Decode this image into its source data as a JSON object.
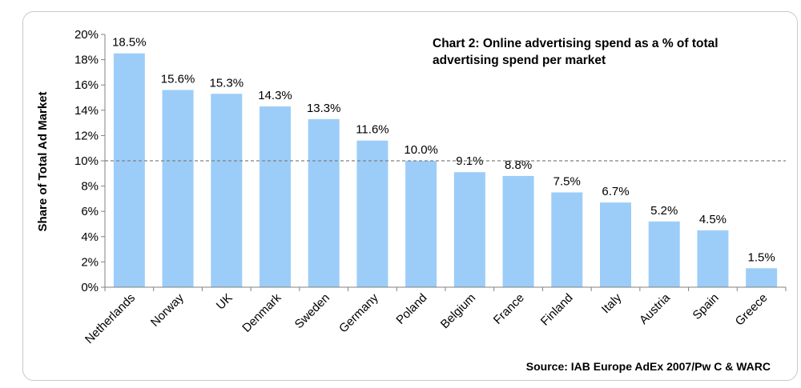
{
  "chart_data": {
    "type": "bar",
    "title_lines": [
      "Chart 2: Online advertising spend as a % of total",
      "advertising spend per market"
    ],
    "ylabel": "Share of Total Ad Market",
    "xlabel": "",
    "source": "Source: IAB Europe AdEx 2007/Pw C & WARC",
    "categories": [
      "Netherlands",
      "Norway",
      "UK",
      "Denmark",
      "Sweden",
      "Germany",
      "Poland",
      "Belgium",
      "France",
      "Finland",
      "Italy",
      "Austria",
      "Spain",
      "Greece"
    ],
    "values": [
      18.5,
      15.6,
      15.3,
      14.3,
      13.3,
      11.6,
      10.0,
      9.1,
      8.8,
      7.5,
      6.7,
      5.2,
      4.5,
      1.5
    ],
    "value_labels": [
      "18.5%",
      "15.6%",
      "15.3%",
      "14.3%",
      "13.3%",
      "11.6%",
      "10.0%",
      "9.1%",
      "8.8%",
      "7.5%",
      "6.7%",
      "5.2%",
      "4.5%",
      "1.5%"
    ],
    "ylim": [
      0,
      20
    ],
    "ytick_labels": [
      "0%",
      "2%",
      "4%",
      "6%",
      "8%",
      "10%",
      "12%",
      "14%",
      "16%",
      "18%",
      "20%"
    ],
    "reference_line": 10,
    "grid": false,
    "legend": "none",
    "colors": {
      "bar": "#9ccdf8",
      "axis": "#808080",
      "reference_line": "#7f7f7f"
    }
  }
}
